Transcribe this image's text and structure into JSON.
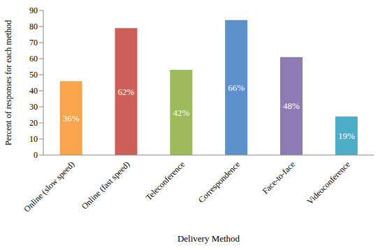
{
  "chart_data": {
    "type": "bar",
    "x_label": "Delivery Method",
    "y_label": "Percent of responses for each method",
    "categories": [
      "Online (slow speed)",
      "Online (fast speed)",
      "Teleconference",
      "Correspondence",
      "Face-to-face",
      "Videoconference"
    ],
    "values": [
      46,
      79,
      53,
      84,
      61,
      24
    ],
    "colors": [
      "#f9a54b",
      "#cd5f5a",
      "#9cbb5b",
      "#5b90cb",
      "#8e7bb4",
      "#4cadc6"
    ],
    "ylim": [
      0,
      90
    ],
    "yticks": [
      0,
      10,
      20,
      30,
      40,
      50,
      60,
      70,
      80,
      90
    ],
    "grid": false,
    "annotations": [
      {
        "category": "Online (slow speed)",
        "text": "36%"
      },
      {
        "category": "Online (fast speed)",
        "text": "62%"
      },
      {
        "category": "Teleconference",
        "text": "42%"
      },
      {
        "category": "Correspondence",
        "text": "66%"
      },
      {
        "category": "Face-to-face",
        "text": "48%"
      },
      {
        "category": "Videoconference",
        "text": "19%"
      }
    ]
  }
}
